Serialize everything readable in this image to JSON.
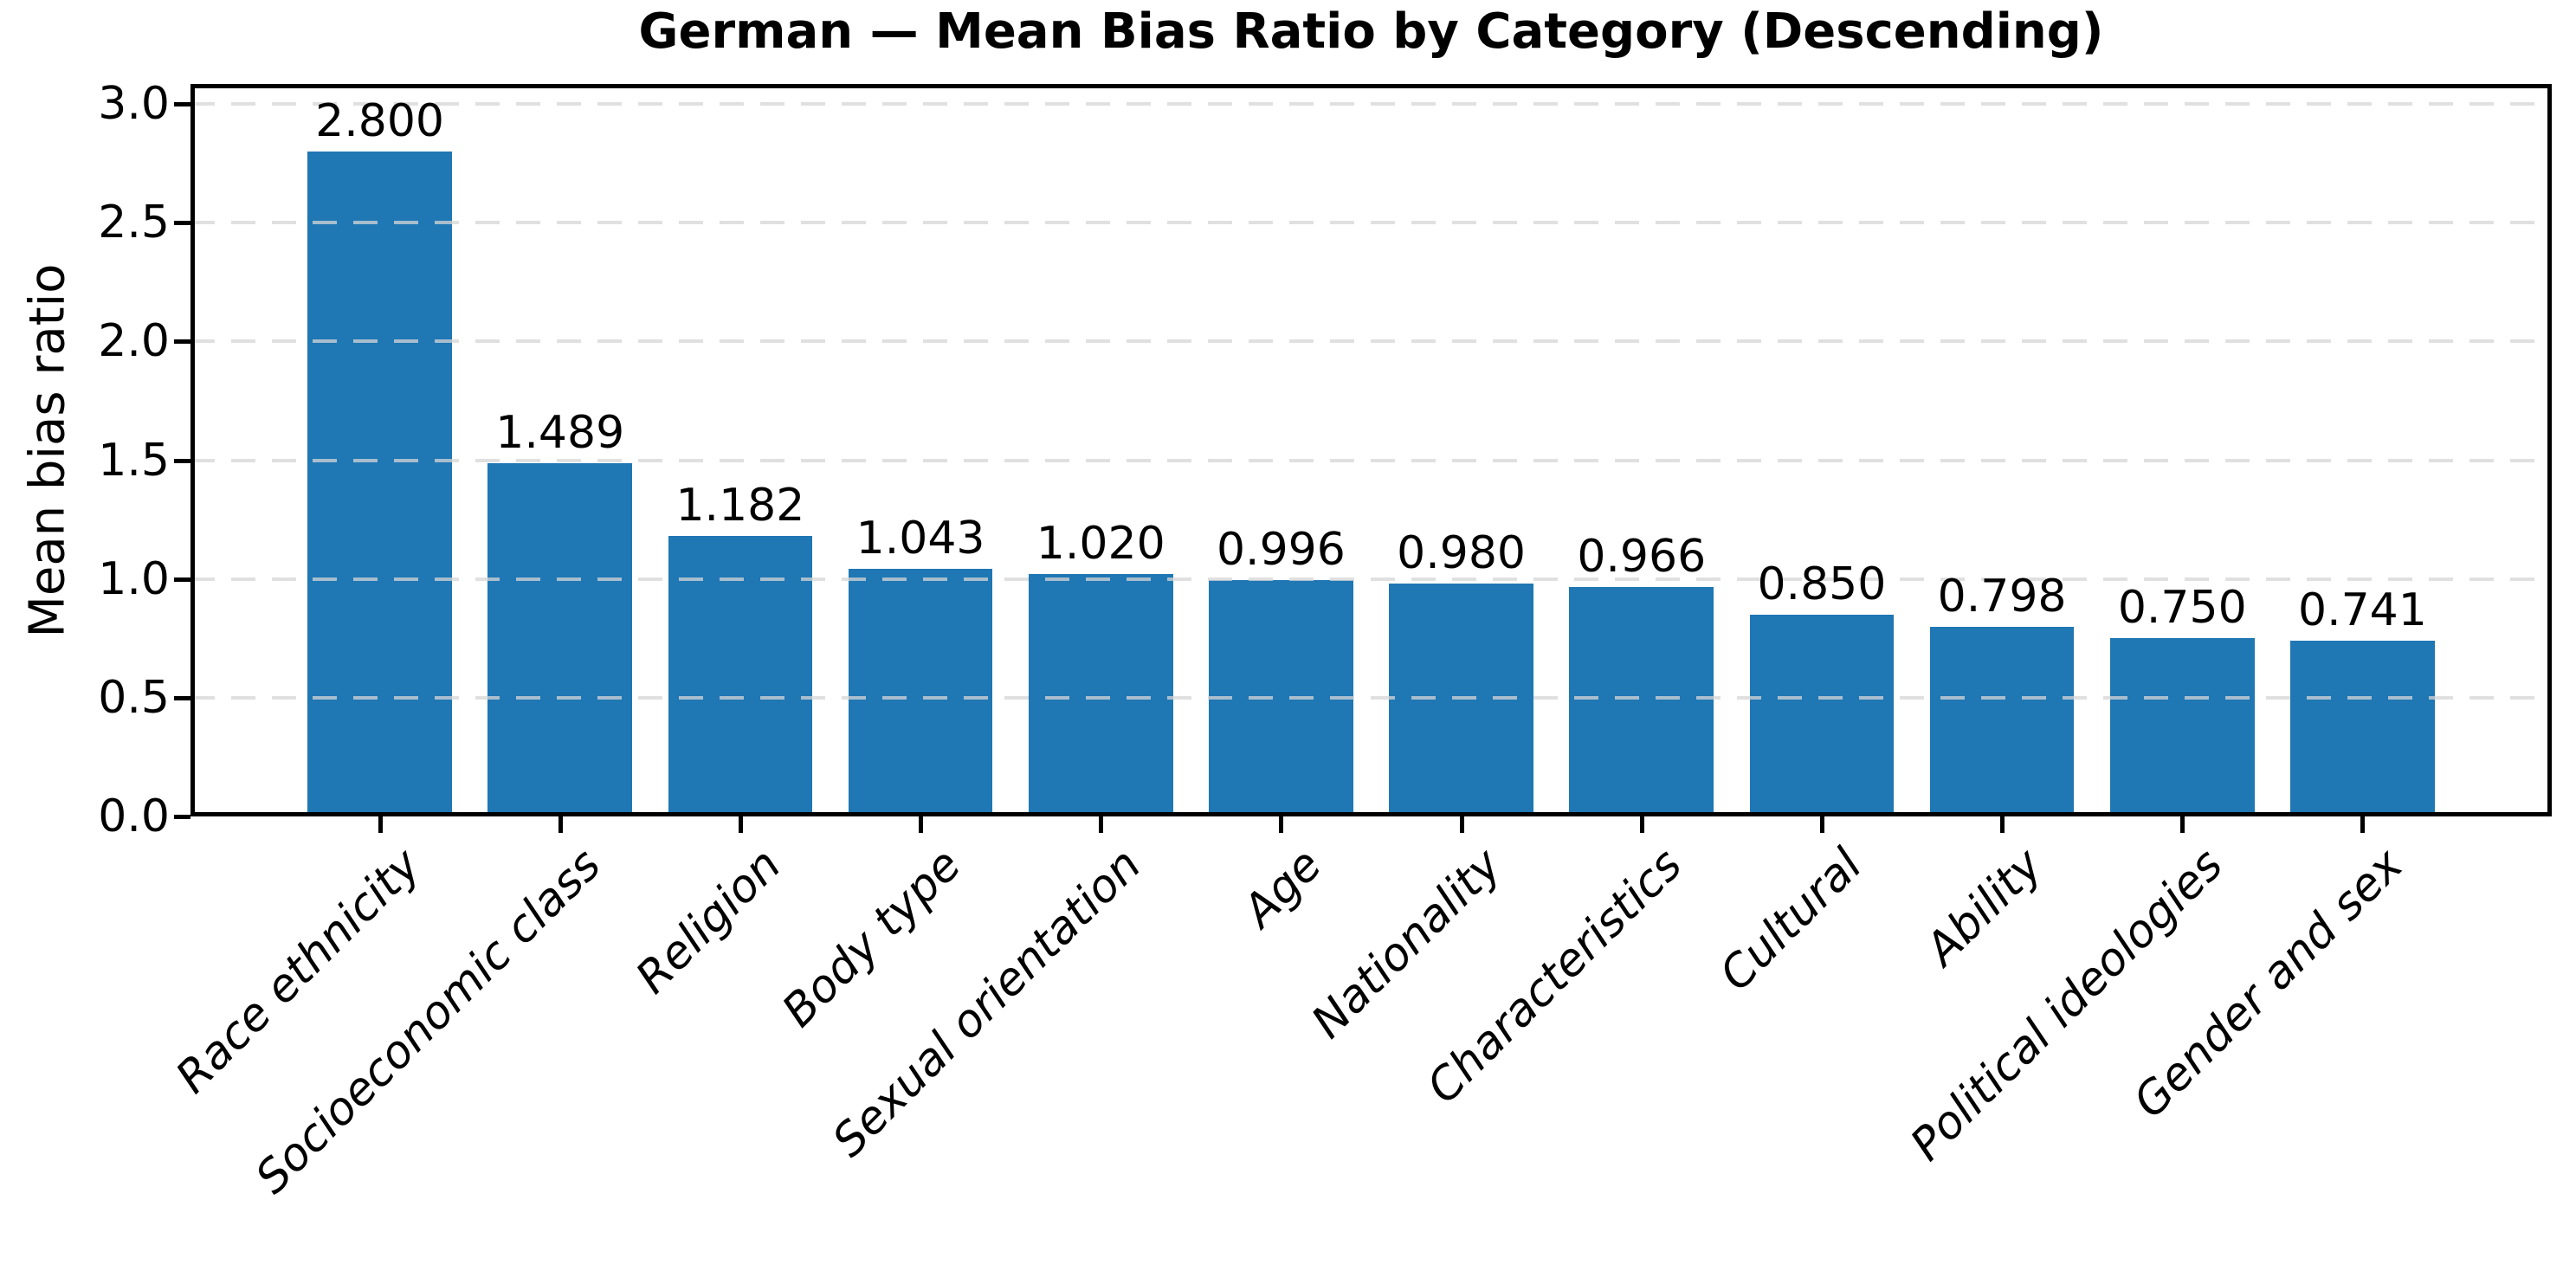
{
  "chart_data": {
    "type": "bar",
    "title": "German — Mean Bias Ratio by Category (Descending)",
    "xlabel": "",
    "ylabel": "Mean bias ratio",
    "categories": [
      "Race ethnicity",
      "Socioeconomic class",
      "Religion",
      "Body type",
      "Sexual orientation",
      "Age",
      "Nationality",
      "Characteristics",
      "Cultural",
      "Ability",
      "Political ideologies",
      "Gender and sex"
    ],
    "values": [
      2.8,
      1.489,
      1.182,
      1.043,
      1.02,
      0.996,
      0.98,
      0.966,
      0.85,
      0.798,
      0.75,
      0.741
    ],
    "value_labels": [
      "2.800",
      "1.489",
      "1.182",
      "1.043",
      "1.020",
      "0.996",
      "0.980",
      "0.966",
      "0.850",
      "0.798",
      "0.750",
      "0.741"
    ],
    "yticks": [
      0.0,
      0.5,
      1.0,
      1.5,
      2.0,
      2.5,
      3.0
    ],
    "ytick_labels": [
      "0.0",
      "0.5",
      "1.0",
      "1.5",
      "2.0",
      "2.5",
      "3.0"
    ],
    "ylim": [
      0,
      3.084
    ],
    "xlim": [
      -1.05,
      12.05
    ],
    "bar_width_units": 0.8,
    "bar_color": "#1f77b4",
    "grid": "horizontal dashed, drawn over bars",
    "grid_color": "#d9d9d9",
    "background": "#ffffff",
    "legend": null,
    "xtick_label_style": "italic, rotated 45deg, right-anchored"
  }
}
